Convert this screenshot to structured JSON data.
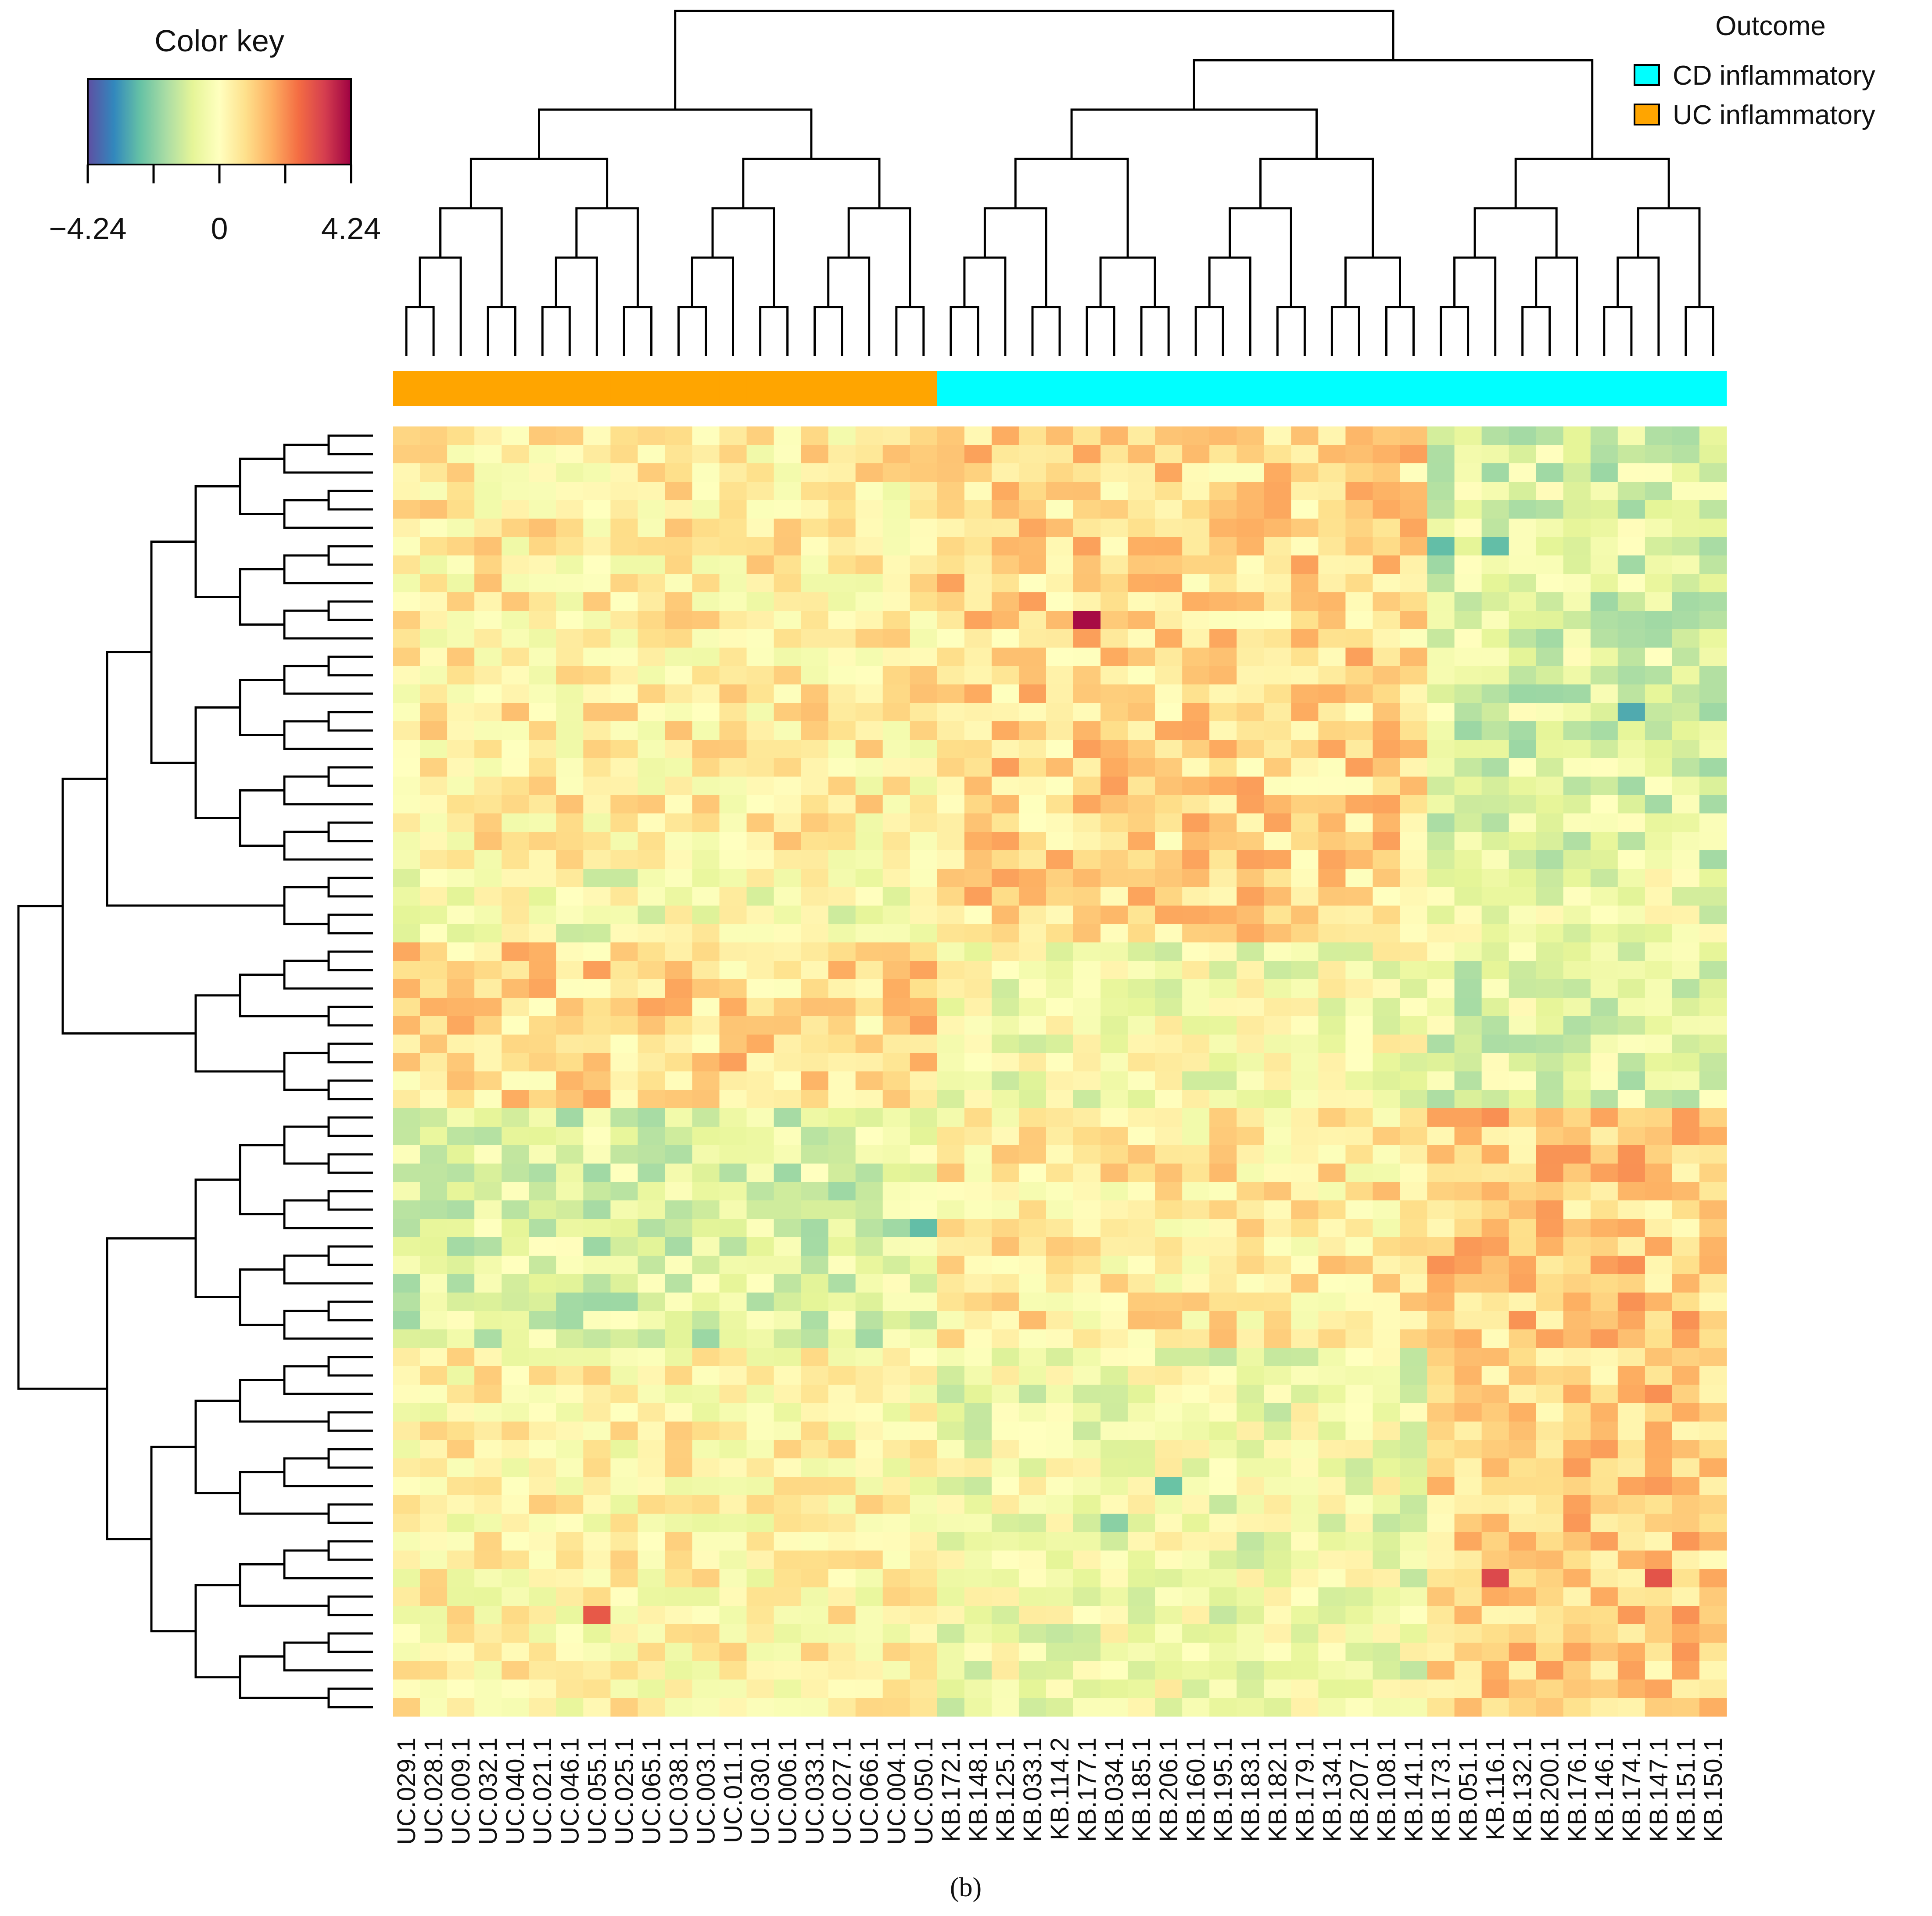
{
  "chart_data": {
    "type": "heatmap",
    "title": "",
    "color_key": {
      "title": "Color key",
      "min": -4.24,
      "max": 4.24,
      "tick_labels": [
        "−4.24",
        "0",
        "4.24"
      ],
      "palette": [
        "#5e4fa2",
        "#3288bd",
        "#66c2a5",
        "#abdda4",
        "#e6f598",
        "#ffffbf",
        "#fee08b",
        "#fdae61",
        "#f46d43",
        "#d53e4f",
        "#9e0142"
      ]
    },
    "legend": {
      "title": "Outcome",
      "position": "top-right",
      "entries": [
        {
          "label": "CD inflammatory",
          "color": "#00ffff"
        },
        {
          "label": "UC inflammatory",
          "color": "#ffa500"
        }
      ]
    },
    "columns": [
      "UC.029.1",
      "UC.028.1",
      "UC.009.1",
      "UC.032.1",
      "UC.040.1",
      "UC.021.1",
      "UC.046.1",
      "UC.055.1",
      "UC.025.1",
      "UC.065.1",
      "UC.038.1",
      "UC.003.1",
      "UC.011.1",
      "UC.030.1",
      "UC.006.1",
      "UC.033.1",
      "UC.027.1",
      "UC.066.1",
      "UC.004.1",
      "UC.050.1",
      "KB.172.1",
      "KB.148.1",
      "KB.125.1",
      "KB.033.1",
      "KB.114.2",
      "KB.177.1",
      "KB.034.1",
      "KB.185.1",
      "KB.206.1",
      "KB.160.1",
      "KB.195.1",
      "KB.183.1",
      "KB.182.1",
      "KB.179.1",
      "KB.134.1",
      "KB.207.1",
      "KB.108.1",
      "KB.141.1",
      "KB.173.1",
      "KB.051.1",
      "KB.116.1",
      "KB.132.1",
      "KB.200.1",
      "KB.176.1",
      "KB.146.1",
      "KB.174.1",
      "KB.147.1",
      "KB.151.1",
      "KB.150.1"
    ],
    "column_groups": [
      "UC inflammatory",
      "UC inflammatory",
      "UC inflammatory",
      "UC inflammatory",
      "UC inflammatory",
      "UC inflammatory",
      "UC inflammatory",
      "UC inflammatory",
      "UC inflammatory",
      "UC inflammatory",
      "UC inflammatory",
      "UC inflammatory",
      "UC inflammatory",
      "UC inflammatory",
      "UC inflammatory",
      "UC inflammatory",
      "UC inflammatory",
      "UC inflammatory",
      "UC inflammatory",
      "UC inflammatory",
      "CD inflammatory",
      "CD inflammatory",
      "CD inflammatory",
      "CD inflammatory",
      "CD inflammatory",
      "CD inflammatory",
      "CD inflammatory",
      "CD inflammatory",
      "CD inflammatory",
      "CD inflammatory",
      "CD inflammatory",
      "CD inflammatory",
      "CD inflammatory",
      "CD inflammatory",
      "CD inflammatory",
      "CD inflammatory",
      "CD inflammatory",
      "CD inflammatory",
      "CD inflammatory",
      "CD inflammatory",
      "CD inflammatory",
      "CD inflammatory",
      "CD inflammatory",
      "CD inflammatory",
      "CD inflammatory",
      "CD inflammatory",
      "CD inflammatory",
      "CD inflammatory",
      "CD inflammatory"
    ],
    "n_rows": 70,
    "row_blocks": [
      {
        "rows": [
          0,
          23
        ],
        "UC inflammatory": 0.4,
        "CD early": 0.9,
        "CD late": -0.9
      },
      {
        "rows": [
          24,
          27
        ],
        "UC inflammatory": -0.3,
        "CD early": 0.9,
        "CD late": -0.5
      },
      {
        "rows": [
          28,
          36
        ],
        "UC inflammatory": 0.9,
        "CD early": -0.3,
        "CD late": -0.8
      },
      {
        "rows": [
          37,
          49
        ],
        "UC inflammatory": -0.9,
        "CD early": 0.5,
        "CD late": 1.1
      },
      {
        "rows": [
          50,
          69
        ],
        "UC inflammatory": 0.2,
        "CD early": -0.4,
        "CD late": 1.1
      }
    ],
    "cd_late_from_column": "KB.173.1",
    "notable_cells": [
      {
        "row": 10,
        "column": "KB.177.1",
        "value": 4.1
      },
      {
        "row": 6,
        "column": "KB.173.1",
        "value": -2.6
      },
      {
        "row": 6,
        "column": "KB.116.1",
        "value": -2.6
      },
      {
        "row": 15,
        "column": "KB.174.1",
        "value": -2.9
      },
      {
        "row": 43,
        "column": "UC.050.1",
        "value": -2.6
      },
      {
        "row": 57,
        "column": "KB.206.1",
        "value": -2.5
      },
      {
        "row": 59,
        "column": "KB.034.1",
        "value": -2.1
      },
      {
        "row": 62,
        "column": "KB.116.1",
        "value": 3.2
      },
      {
        "row": 62,
        "column": "KB.147.1",
        "value": 3.0
      },
      {
        "row": 64,
        "column": "UC.055.1",
        "value": 2.9
      }
    ],
    "dendrograms": {
      "rows": true,
      "columns": true
    }
  },
  "caption": "(b)"
}
